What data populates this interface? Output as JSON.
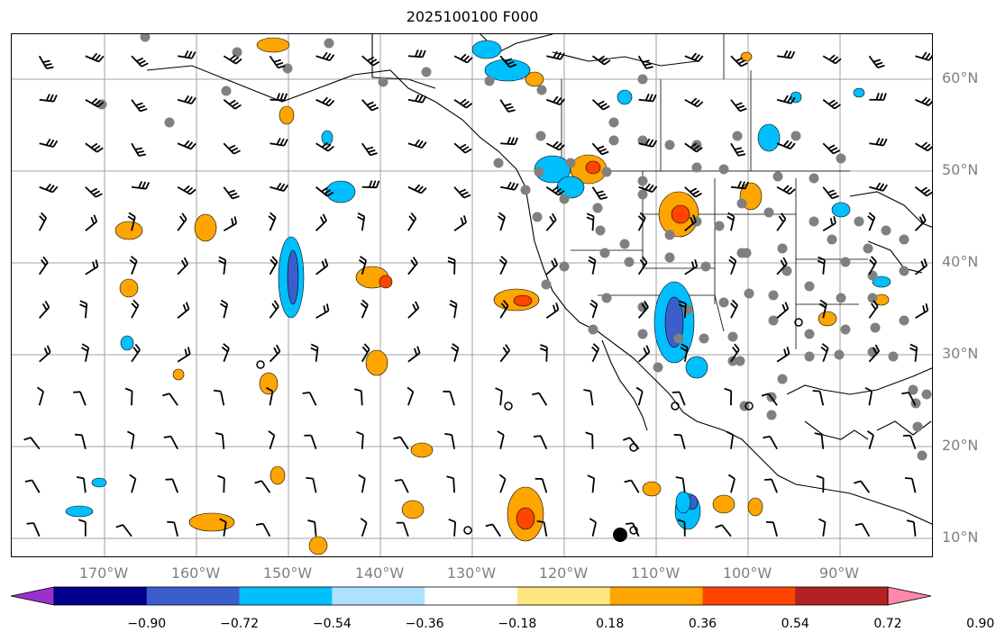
{
  "title": "2025100100 F000",
  "lat_labels": [
    "60°N",
    "50°N",
    "40°N",
    "30°N",
    "20°N",
    "10°N"
  ],
  "lon_labels": [
    "170°W",
    "160°W",
    "150°W",
    "140°W",
    "130°W",
    "120°W",
    "110°W",
    "100°W",
    "90°W"
  ],
  "colorbar": {
    "tick_labels": [
      "−0.90",
      "−0.72",
      "−0.54",
      "−0.36",
      "−0.18",
      "0.18",
      "0.36",
      "0.54",
      "0.72",
      "0.90"
    ],
    "colors": [
      "#9b30d0",
      "#00008b",
      "#3a5fcd",
      "#00bfff",
      "#aee0ff",
      "#ffffff",
      "#ffe680",
      "#ffa500",
      "#ff4500",
      "#b22222",
      "#ff88aa"
    ]
  },
  "map_data": {
    "type": "weather-map",
    "projection": "plate-carree",
    "lon_range": [
      -180,
      -80
    ],
    "lat_range": [
      7,
      64
    ],
    "gridlines": true,
    "field": "contour-filled anomaly with wind barbs and station dots",
    "colors": {
      "grid": "#a0a0a0",
      "coast": "#000000",
      "station": "#808080"
    }
  }
}
